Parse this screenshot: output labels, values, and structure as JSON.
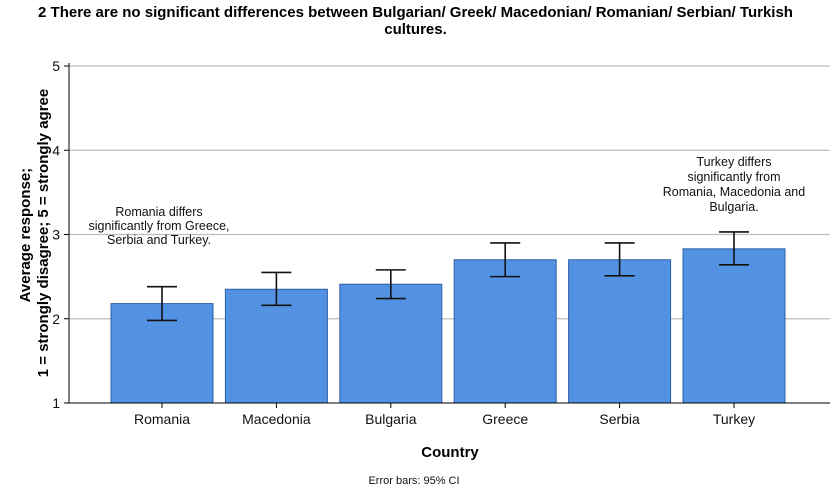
{
  "chart_data": {
    "type": "bar",
    "title_lines": [
      "2 There are no significant differences between Bulgarian/ Greek/ Macedonian/ Romanian/ Serbian/ Turkish",
      "cultures."
    ],
    "xlabel": "Country",
    "ylabel_lines": [
      "Average response;",
      "1 = strongly disagree; 5 = strongly agree"
    ],
    "categories": [
      "Romania",
      "Macedonia",
      "Bulgaria",
      "Greece",
      "Serbia",
      "Turkey"
    ],
    "values": [
      2.18,
      2.35,
      2.41,
      2.7,
      2.7,
      2.83
    ],
    "ci_low": [
      1.98,
      2.16,
      2.24,
      2.5,
      2.51,
      2.64
    ],
    "ci_high": [
      2.38,
      2.55,
      2.58,
      2.9,
      2.9,
      3.03
    ],
    "ylim": [
      1,
      5
    ],
    "yticks": [
      "1",
      "2",
      "3",
      "4",
      "5"
    ],
    "grid": true,
    "bar_color": "#5392e3",
    "bar_edge_color": "#2e5fa8",
    "annotations": [
      {
        "anchor": "Romania",
        "lines": [
          "Romania differs",
          "significantly from Greece,",
          "Serbia and Turkey."
        ]
      },
      {
        "anchor": "Turkey",
        "lines": [
          "Turkey differs",
          "significantly from",
          "Romania, Macedonia and",
          "Bulgaria."
        ]
      }
    ],
    "footnote": "Error bars: 95% CI"
  }
}
